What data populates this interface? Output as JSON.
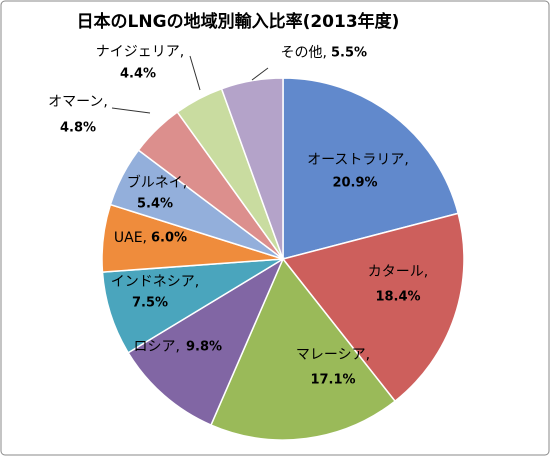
{
  "chart_data": {
    "type": "pie",
    "title": "日本のLNGの地域別輸入比率(2013年度)",
    "categories": [
      "オーストラリア,",
      "カタール,",
      "マレーシア,",
      "ロシア,",
      "インドネシア,",
      "UAE,",
      "ブルネイ,",
      "オマーン,",
      "ナイジェリア,",
      "その他,"
    ],
    "values": [
      20.9,
      18.4,
      17.1,
      9.8,
      7.5,
      6.0,
      5.4,
      4.8,
      4.4,
      5.5
    ],
    "value_labels": [
      "20.9%",
      "18.4%",
      "17.1%",
      "9.8%",
      "7.5%",
      "6.0%",
      "5.4%",
      "4.8%",
      "4.4%",
      "5.5%"
    ],
    "colors": [
      "#6189cc",
      "#cd5f5c",
      "#9aba59",
      "#8166a4",
      "#4aa5bd",
      "#ef8c3c",
      "#93afdb",
      "#dc8f8d",
      "#c9dca0",
      "#b4a3c9"
    ]
  }
}
